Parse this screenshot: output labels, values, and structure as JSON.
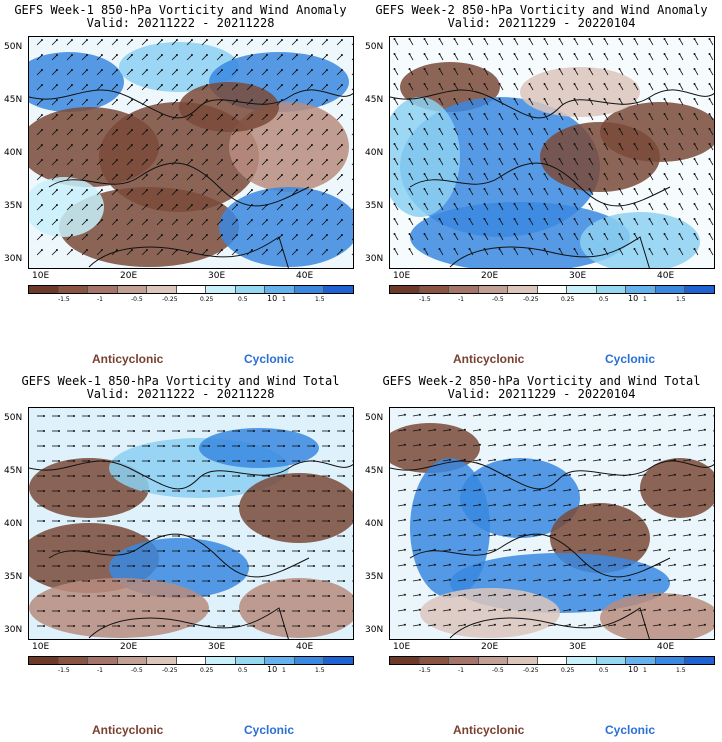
{
  "colorbar": {
    "labels": [
      "-1.5",
      "-1",
      "-0.5",
      "-0.25",
      "0.25",
      "0.5",
      "1",
      "1.5"
    ],
    "scale_note": "10",
    "colors": [
      "#6d3a2a",
      "#8a5442",
      "#a6756a",
      "#c2a096",
      "#dcc6bc",
      "#ffffff",
      "#c8f0fa",
      "#94d8f2",
      "#64b2ee",
      "#3a88e0",
      "#1f62d2"
    ]
  },
  "legend": {
    "anticyclonic": "Anticyclonic",
    "cyclonic": "Cyclonic"
  },
  "axes": {
    "y_ticks": [
      "50N",
      "45N",
      "40N",
      "35N",
      "30N"
    ],
    "x_ticks": [
      "10E",
      "20E",
      "30E",
      "40E"
    ]
  },
  "panels": [
    {
      "title": "GEFS Week-1 850-hPa Vorticity and Wind Anomaly",
      "subtitle": "Valid: 20211222 - 20211228",
      "pattern": "anom1",
      "wind_dir_deg": 45
    },
    {
      "title": "GEFS Week-2 850-hPa Vorticity and Wind Anomaly",
      "subtitle": "Valid: 20211229 - 20220104",
      "pattern": "anom2",
      "wind_dir_deg": 120
    },
    {
      "title": "GEFS Week-1 850-hPa Vorticity and Wind Total",
      "subtitle": "Valid: 20211222 - 20211228",
      "pattern": "tot1",
      "wind_dir_deg": 0
    },
    {
      "title": "GEFS Week-2 850-hPa Vorticity and Wind Total",
      "subtitle": "Valid: 20211229 - 20220104",
      "pattern": "tot2",
      "wind_dir_deg": 10
    }
  ]
}
